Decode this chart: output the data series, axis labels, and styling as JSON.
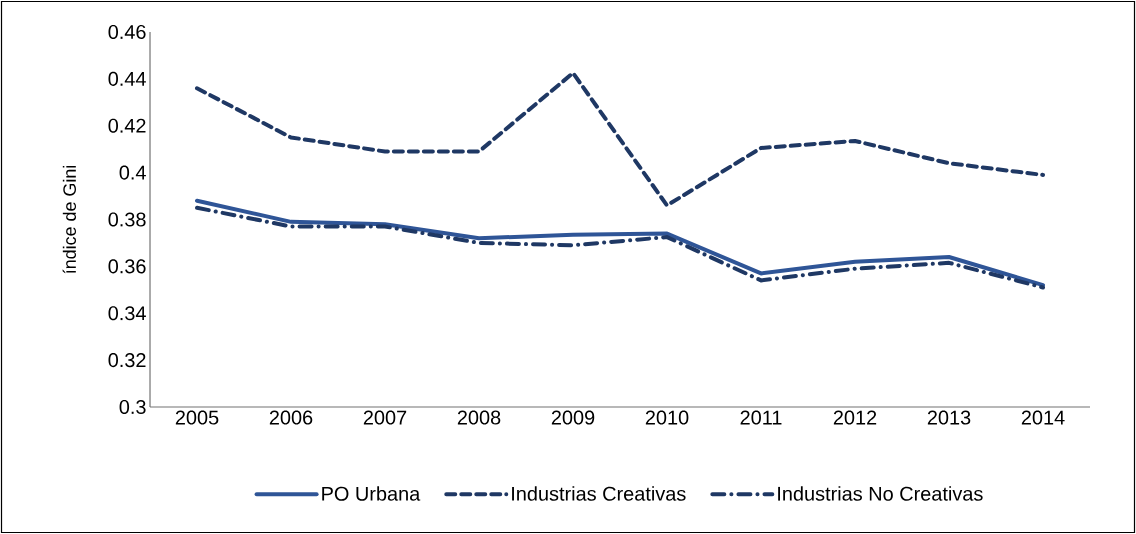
{
  "chart_data": {
    "type": "line",
    "ylabel": "índice de Gini",
    "categories": [
      "2005",
      "2006",
      "2007",
      "2008",
      "2009",
      "2010",
      "2011",
      "2012",
      "2013",
      "2014"
    ],
    "series": [
      {
        "name": "PO Urbana",
        "color": "#2f5597",
        "line_style": "solid",
        "values": [
          0.388,
          0.379,
          0.378,
          0.372,
          0.3735,
          0.374,
          0.357,
          0.362,
          0.364,
          0.352
        ]
      },
      {
        "name": "Industrias Creativas",
        "color": "#1f3864",
        "line_style": "dashed",
        "values": [
          0.436,
          0.415,
          0.409,
          0.409,
          0.4425,
          0.386,
          0.4105,
          0.4135,
          0.404,
          0.399
        ]
      },
      {
        "name": "Industrias No Creativas",
        "color": "#1f3864",
        "line_style": "dashdot",
        "values": [
          0.385,
          0.377,
          0.377,
          0.37,
          0.369,
          0.3725,
          0.354,
          0.359,
          0.3615,
          0.351
        ]
      }
    ],
    "ylim": [
      0.3,
      0.46
    ],
    "yticks": [
      0.3,
      0.32,
      0.34,
      0.36,
      0.38,
      0.4,
      0.42,
      0.44,
      0.46
    ],
    "legend": "bottom",
    "marker": "none",
    "grid": false
  }
}
